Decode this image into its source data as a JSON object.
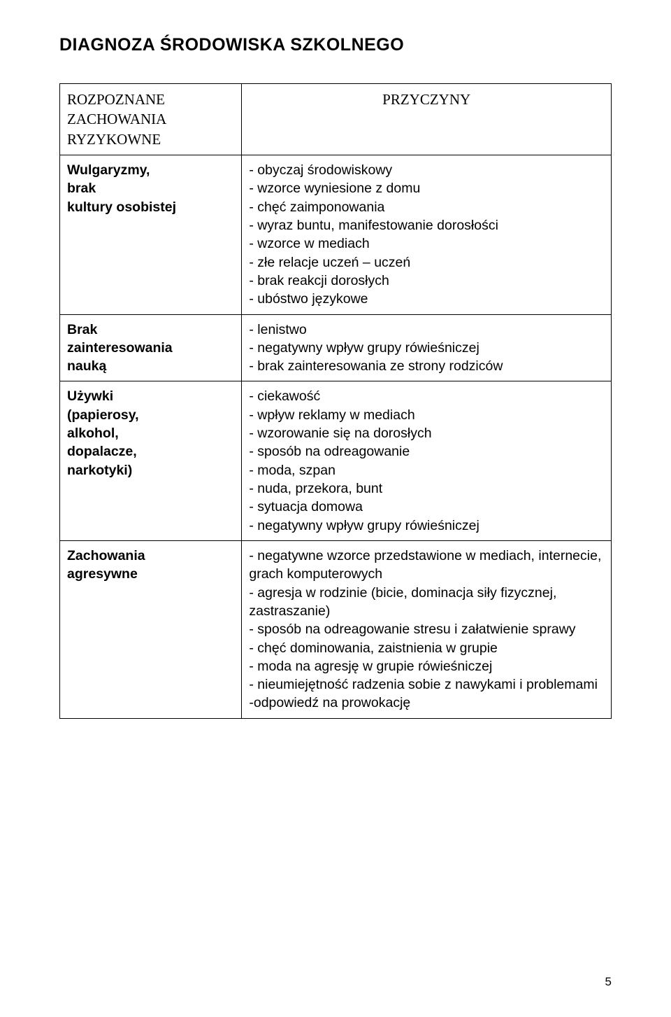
{
  "title": "DIAGNOZA ŚRODOWISKA SZKOLNEGO",
  "header_left": "ROZPOZNANE\nZACHOWANIA\nRYZYKOWNE",
  "header_right": "PRZYCZYNY",
  "page_number": "5",
  "rows": [
    {
      "label": "Wulgaryzmy,\nbrak\nkultury osobistej",
      "causes": [
        "- obyczaj środowiskowy",
        "- wzorce wyniesione z domu",
        "- chęć zaimponowania",
        "- wyraz buntu, manifestowanie dorosłości",
        "- wzorce w mediach",
        "- złe relacje uczeń – uczeń",
        "- brak reakcji dorosłych",
        "- ubóstwo językowe"
      ]
    },
    {
      "label": "Brak\nzainteresowania\nnauką",
      "causes": [
        "- lenistwo",
        "- negatywny wpływ grupy rówieśniczej",
        "- brak zainteresowania ze strony rodziców"
      ]
    },
    {
      "label": "Używki\n(papierosy,\nalkohol,\ndopalacze,\nnarkotyki)",
      "causes": [
        "- ciekawość",
        "- wpływ reklamy w mediach",
        "- wzorowanie się na dorosłych",
        "- sposób na odreagowanie",
        "- moda, szpan",
        "- nuda, przekora, bunt",
        "- sytuacja domowa",
        "- negatywny wpływ grupy rówieśniczej"
      ]
    },
    {
      "label": "Zachowania\nagresywne",
      "causes": [
        "- negatywne wzorce przedstawione w mediach, internecie, grach komputerowych",
        "- agresja w rodzinie (bicie, dominacja siły fizycznej, zastraszanie)",
        "- sposób na odreagowanie stresu i załatwienie sprawy",
        "- chęć dominowania, zaistnienia w grupie",
        "- moda na agresję w grupie rówieśniczej",
        "- nieumiejętność radzenia sobie z nawykami i problemami",
        "-odpowiedź na prowokację"
      ]
    }
  ]
}
